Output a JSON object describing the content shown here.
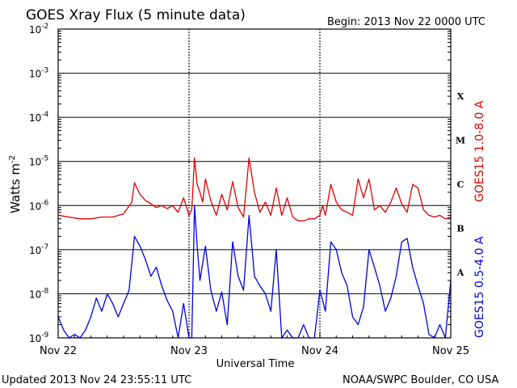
{
  "chart_data": {
    "type": "line",
    "title": "GOES Xray Flux (5 minute data)",
    "begin_label": "Begin:  2013 Nov 22 0000 UTC",
    "ylabel_main": "Watts m",
    "ylabel_sup": "-2",
    "xlabel": "Universal Time",
    "scale": "log",
    "ylim": [
      1e-09,
      0.01
    ],
    "xlim_hours": [
      0,
      72
    ],
    "y_ticks": [
      {
        "base": "10",
        "exp": "-9",
        "value": 1e-09
      },
      {
        "base": "10",
        "exp": "-8",
        "value": 1e-08
      },
      {
        "base": "10",
        "exp": "-7",
        "value": 1e-07
      },
      {
        "base": "10",
        "exp": "-6",
        "value": 1e-06
      },
      {
        "base": "10",
        "exp": "-5",
        "value": 1e-05
      },
      {
        "base": "10",
        "exp": "-4",
        "value": 0.0001
      },
      {
        "base": "10",
        "exp": "-3",
        "value": 0.001
      },
      {
        "base": "10",
        "exp": "-2",
        "value": 0.01
      }
    ],
    "x_ticks": [
      {
        "label": "Nov 22",
        "hour": 0
      },
      {
        "label": "Nov 23",
        "hour": 24
      },
      {
        "label": "Nov 24",
        "hour": 48
      },
      {
        "label": "Nov 25",
        "hour": 72
      }
    ],
    "flare_classes": [
      {
        "label": "X",
        "value": 0.0001
      },
      {
        "label": "M",
        "value": 1e-05
      },
      {
        "label": "C",
        "value": 1e-06
      },
      {
        "label": "B",
        "value": 1e-07
      },
      {
        "label": "A",
        "value": 1e-08
      }
    ],
    "grid": true,
    "series": [
      {
        "name": "GOES15 1.0-8.0 A",
        "color": "#e00000",
        "x": [
          0,
          2,
          4,
          6,
          8,
          10,
          12,
          13.5,
          14,
          14.5,
          15,
          16,
          17,
          18,
          19,
          20,
          21,
          22,
          23,
          24,
          24.5,
          25,
          25.5,
          26,
          26.5,
          27,
          28,
          29,
          30,
          31,
          32,
          33,
          34,
          35,
          36,
          37,
          38,
          39,
          40,
          41,
          42,
          43,
          44,
          45,
          46,
          47,
          48,
          48.5,
          49,
          50,
          51,
          52,
          53,
          54,
          55,
          56,
          57,
          58,
          59,
          60,
          61,
          62,
          63,
          64,
          65,
          66,
          67,
          68,
          69,
          70,
          71,
          72
        ],
        "y": [
          6e-07,
          5.5e-07,
          5e-07,
          5e-07,
          5.5e-07,
          5.5e-07,
          6.5e-07,
          1.2e-06,
          3.3e-06,
          2.4e-06,
          1.8e-06,
          1.3e-06,
          1.1e-06,
          9e-07,
          1e-06,
          8.5e-07,
          1e-06,
          7e-07,
          1.5e-06,
          6e-07,
          8e-07,
          1.2e-05,
          3e-06,
          2e-06,
          1.2e-06,
          4e-06,
          1.3e-06,
          6e-07,
          1.8e-06,
          8e-07,
          3.5e-06,
          9e-07,
          5.5e-07,
          1.2e-05,
          2e-06,
          7e-07,
          1.2e-06,
          6e-07,
          2.5e-06,
          6e-07,
          1.5e-06,
          5.5e-07,
          4.5e-07,
          4.5e-07,
          5e-07,
          5e-07,
          6e-07,
          1e-06,
          6e-07,
          3e-06,
          1.2e-06,
          8e-07,
          7e-07,
          6e-07,
          4e-06,
          1.5e-06,
          4e-06,
          8e-07,
          1e-06,
          7e-07,
          1.2e-06,
          2.5e-06,
          1.1e-06,
          7e-07,
          3e-06,
          2.5e-06,
          8e-07,
          6e-07,
          5.5e-07,
          6e-07,
          5e-07,
          5.5e-07
        ]
      },
      {
        "name": "GOES15 0.5-4.0 A",
        "color": "#0000e0",
        "x": [
          0,
          1,
          2,
          3,
          4,
          5,
          6,
          7,
          8,
          9,
          10,
          11,
          12,
          13,
          14,
          15,
          16,
          17,
          18,
          19,
          20,
          21,
          22,
          23,
          24,
          24.5,
          25,
          25.5,
          26,
          27,
          28,
          29,
          30,
          31,
          32,
          33,
          34,
          35,
          36,
          37,
          38,
          39,
          40,
          41,
          42,
          43,
          44,
          45,
          46,
          47,
          48,
          49,
          50,
          51,
          52,
          53,
          54,
          55,
          56,
          57,
          58,
          59,
          60,
          61,
          62,
          63,
          64,
          65,
          66,
          67,
          68,
          69,
          70,
          71,
          72
        ],
        "y": [
          3e-09,
          1.5e-09,
          1e-09,
          1.2e-09,
          1e-09,
          1.5e-09,
          3e-09,
          8e-09,
          4e-09,
          1e-08,
          6e-09,
          3e-09,
          6e-09,
          1.2e-08,
          2e-07,
          1.2e-07,
          6e-08,
          2.5e-08,
          4e-08,
          1.5e-08,
          7e-09,
          4e-09,
          1e-09,
          6e-09,
          1e-09,
          1e-09,
          1e-06,
          1.2e-07,
          2e-08,
          1.2e-07,
          1.2e-08,
          4e-09,
          1.1e-08,
          2e-09,
          1.5e-07,
          2.5e-08,
          1.2e-08,
          6e-07,
          2.5e-08,
          1.5e-08,
          1e-08,
          4e-09,
          1e-07,
          1e-09,
          1.5e-09,
          1e-09,
          1e-09,
          2e-09,
          1e-09,
          1e-09,
          1.2e-08,
          4e-09,
          1.5e-07,
          1e-07,
          3e-08,
          1.5e-08,
          3e-09,
          2e-09,
          5e-09,
          1e-07,
          4e-08,
          1.5e-08,
          4e-09,
          8e-09,
          2.5e-08,
          1.5e-07,
          1.8e-07,
          4e-08,
          1.5e-08,
          6e-09,
          1.2e-09,
          1e-09,
          2e-09,
          1e-09,
          2e-08
        ]
      }
    ]
  },
  "footer": {
    "updated": "Updated 2013 Nov 24 23:55:11 UTC",
    "credit": "NOAA/SWPC Boulder, CO USA"
  }
}
